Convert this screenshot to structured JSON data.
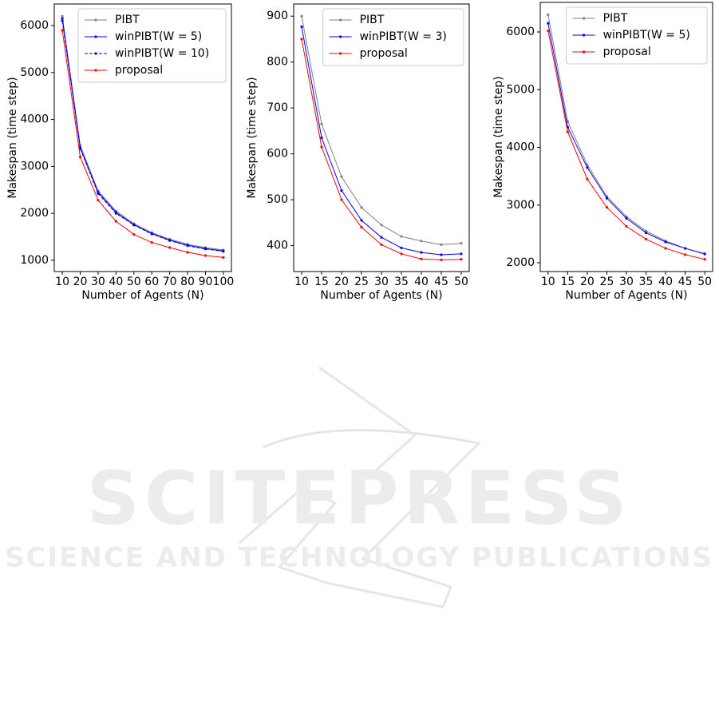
{
  "chart_data": [
    {
      "type": "line",
      "xlabel": "Number of Agents (N)",
      "ylabel": "Makespan (time step)",
      "x": [
        10,
        20,
        30,
        40,
        50,
        60,
        70,
        80,
        90,
        100
      ],
      "xlim": [
        5.5,
        104.5
      ],
      "xticks": [
        10,
        20,
        30,
        40,
        50,
        60,
        70,
        80,
        90,
        100
      ],
      "ylim": [
        760,
        6460
      ],
      "yticks": [
        1000,
        2000,
        3000,
        4000,
        5000,
        6000
      ],
      "legend": "upper right",
      "series": [
        {
          "name": "PIBT",
          "color": "#808080",
          "linestyle": "solid",
          "values": [
            6200,
            3450,
            2480,
            2050,
            1780,
            1590,
            1450,
            1340,
            1270,
            1220
          ]
        },
        {
          "name": "winPIBT(W = 5)",
          "color": "#0000ff",
          "linestyle": "solid",
          "values": [
            6150,
            3400,
            2450,
            2020,
            1760,
            1570,
            1430,
            1320,
            1250,
            1200
          ]
        },
        {
          "name": "winPIBT(W = 10)",
          "color": "#0000ff",
          "linestyle": "dashed",
          "values": [
            6100,
            3380,
            2420,
            2000,
            1750,
            1560,
            1420,
            1310,
            1240,
            1190
          ]
        },
        {
          "name": "proposal",
          "color": "#ff0000",
          "linestyle": "solid",
          "values": [
            5900,
            3200,
            2280,
            1830,
            1550,
            1380,
            1270,
            1170,
            1100,
            1060
          ]
        }
      ]
    },
    {
      "type": "line",
      "xlabel": "Number of Agents (N)",
      "ylabel": "Makespan (time step)",
      "x": [
        10,
        15,
        20,
        25,
        30,
        35,
        40,
        45,
        50
      ],
      "xlim": [
        8,
        52
      ],
      "xticks": [
        10,
        15,
        20,
        25,
        30,
        35,
        40,
        45,
        50
      ],
      "ylim": [
        343.5,
        926.5
      ],
      "yticks": [
        400,
        500,
        600,
        700,
        800,
        900
      ],
      "legend": "upper right",
      "series": [
        {
          "name": "PIBT",
          "color": "#808080",
          "linestyle": "solid",
          "values": [
            900,
            665,
            550,
            483,
            445,
            420,
            410,
            402,
            405
          ]
        },
        {
          "name": "winPIBT(W = 3)",
          "color": "#0000ff",
          "linestyle": "solid",
          "values": [
            877,
            635,
            520,
            455,
            418,
            395,
            385,
            380,
            382
          ]
        },
        {
          "name": "proposal",
          "color": "#ff0000",
          "linestyle": "solid",
          "values": [
            850,
            615,
            500,
            440,
            402,
            382,
            371,
            369,
            370
          ]
        }
      ]
    },
    {
      "type": "line",
      "xlabel": "Number of Agents (N)",
      "ylabel": "Makespan (time step)",
      "x": [
        10,
        15,
        20,
        25,
        30,
        35,
        40,
        45,
        50
      ],
      "xlim": [
        8,
        52
      ],
      "xticks": [
        10,
        15,
        20,
        25,
        30,
        35,
        40,
        45,
        50
      ],
      "ylim": [
        1848,
        6512
      ],
      "yticks": [
        2000,
        3000,
        4000,
        5000,
        6000
      ],
      "legend": "upper right",
      "series": [
        {
          "name": "PIBT",
          "color": "#808080",
          "linestyle": "solid",
          "values": [
            6300,
            4450,
            3700,
            3150,
            2800,
            2550,
            2380,
            2250,
            2160
          ]
        },
        {
          "name": "winPIBT(W = 5)",
          "color": "#0000ff",
          "linestyle": "solid",
          "values": [
            6150,
            4350,
            3650,
            3120,
            2770,
            2520,
            2360,
            2250,
            2150
          ]
        },
        {
          "name": "proposal",
          "color": "#ff0000",
          "linestyle": "solid",
          "values": [
            6020,
            4270,
            3450,
            2960,
            2630,
            2410,
            2250,
            2140,
            2060
          ]
        }
      ]
    }
  ],
  "watermark": {
    "title": "SCITEPRESS",
    "subtitle": "SCIENCE AND TECHNOLOGY PUBLICATIONS"
  }
}
